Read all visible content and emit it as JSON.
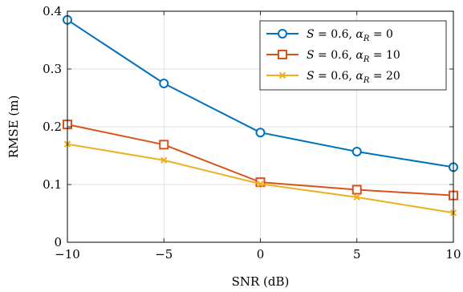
{
  "chart_data": {
    "type": "line",
    "xlabel": "SNR (dB)",
    "ylabel": "RMSE (m)",
    "xlim": [
      -10,
      10
    ],
    "ylim": [
      0,
      0.4
    ],
    "x_ticks": [
      -10,
      -5,
      0,
      5,
      10
    ],
    "x_tick_labels": [
      "−10",
      "−5",
      "0",
      "5",
      "10"
    ],
    "y_ticks": [
      0,
      0.1,
      0.2,
      0.3,
      0.4
    ],
    "y_tick_labels": [
      "0",
      "0.1",
      "0.2",
      "0.3",
      "0.4"
    ],
    "grid": true,
    "legend_position": "top-right",
    "x": [
      -10,
      -5,
      0,
      5,
      10
    ],
    "series": [
      {
        "s_text": "S = 0.6, ",
        "alpha_sym": "α",
        "alpha_sub": "R",
        "alpha_val": " = 0",
        "values": [
          0.385,
          0.275,
          0.19,
          0.157,
          0.13
        ],
        "color": "#0072bd",
        "marker": "circle"
      },
      {
        "s_text": "S = 0.6, ",
        "alpha_sym": "α",
        "alpha_sub": "R",
        "alpha_val": " = 10",
        "values": [
          0.204,
          0.169,
          0.104,
          0.091,
          0.081
        ],
        "color": "#d95319",
        "marker": "square"
      },
      {
        "s_text": "S = 0.6, ",
        "alpha_sym": "α",
        "alpha_sub": "R",
        "alpha_val": " = 20",
        "values": [
          0.17,
          0.142,
          0.101,
          0.078,
          0.051
        ],
        "color": "#edb120",
        "marker": "x"
      }
    ]
  }
}
